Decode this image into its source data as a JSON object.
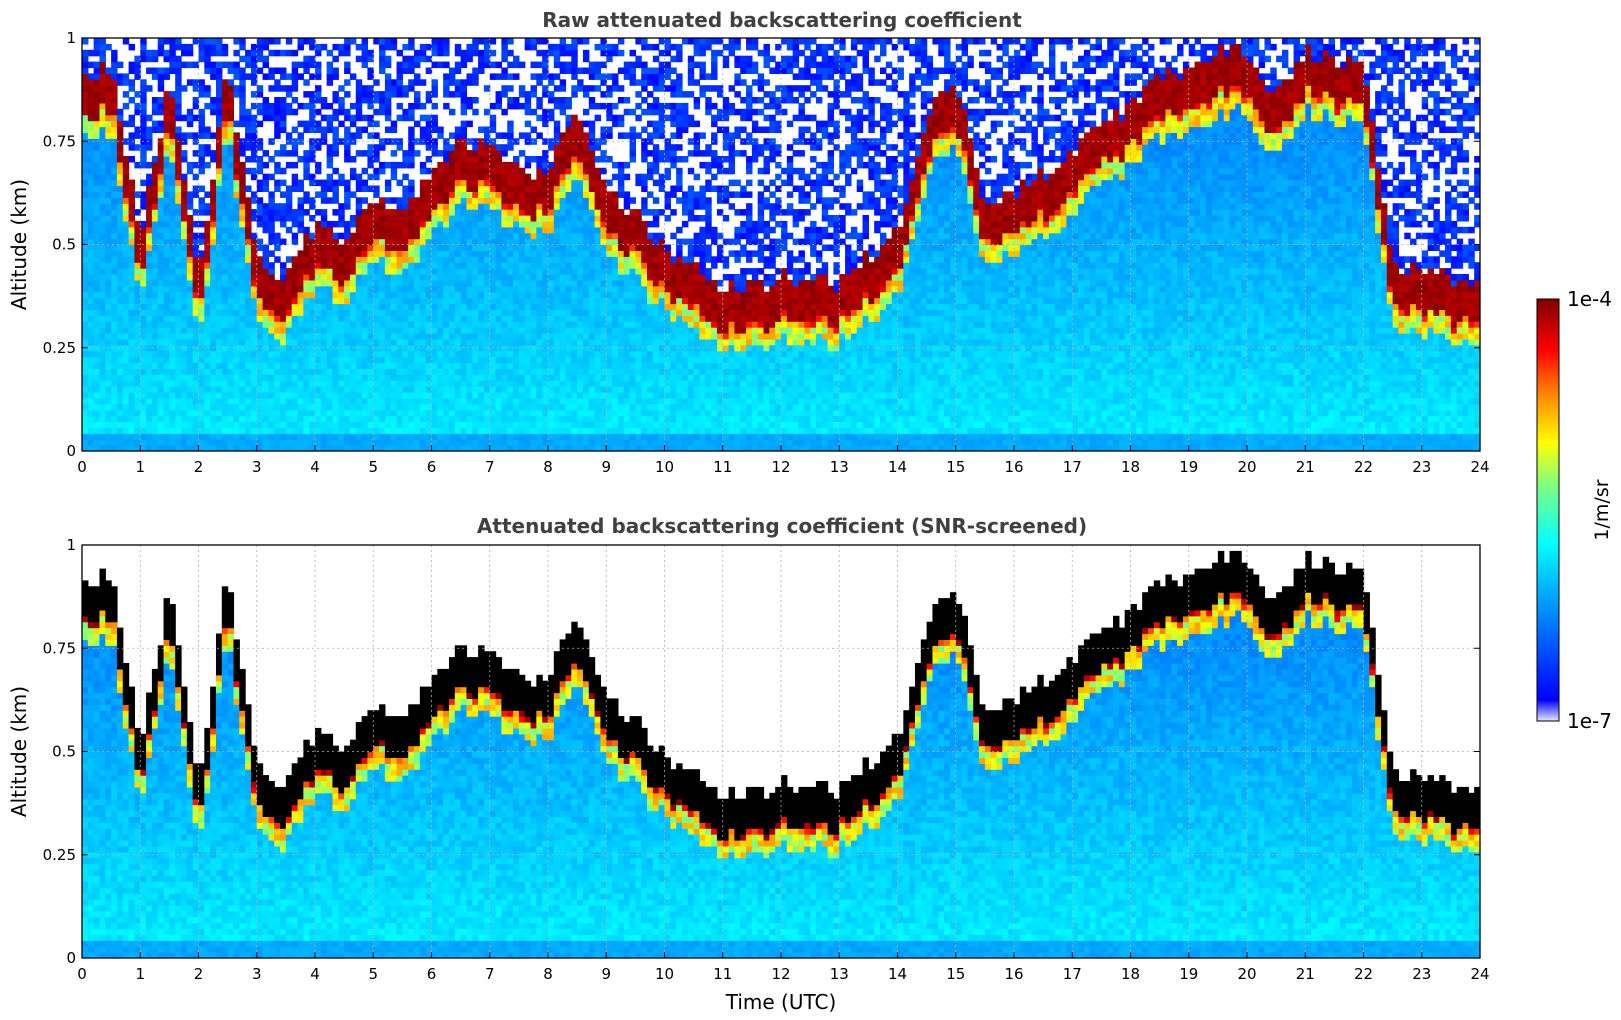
{
  "colors": {
    "colormap": [
      "#ffffff",
      "#0000ff",
      "#00a8ff",
      "#00ffff",
      "#7fff7f",
      "#ffff00",
      "#ff7f00",
      "#ff0000",
      "#7f0000"
    ],
    "saturated_screened": "#000000",
    "title_text": "#404040",
    "grid": "#b0b0b0"
  },
  "chart_data": [
    {
      "type": "heatmap",
      "title": "Raw attenuated backscattering coefficient",
      "xlabel": "",
      "ylabel": "Altitude (km)",
      "xlim": [
        0,
        24
      ],
      "ylim": [
        0,
        1
      ],
      "xticks": [
        "0",
        "1",
        "2",
        "3",
        "4",
        "5",
        "6",
        "7",
        "8",
        "9",
        "10",
        "11",
        "12",
        "13",
        "14",
        "15",
        "16",
        "17",
        "18",
        "19",
        "20",
        "21",
        "22",
        "23",
        "24"
      ],
      "yticks": [
        "0",
        "0.25",
        "0.5",
        "0.75",
        "1"
      ],
      "grid": true,
      "variant": "raw",
      "cloud_base_km": [
        [
          0.0,
          0.8
        ],
        [
          0.5,
          0.82
        ],
        [
          1.0,
          0.4
        ],
        [
          1.5,
          0.78
        ],
        [
          2.0,
          0.3
        ],
        [
          2.5,
          0.82
        ],
        [
          3.0,
          0.34
        ],
        [
          3.5,
          0.31
        ],
        [
          4.0,
          0.44
        ],
        [
          4.5,
          0.4
        ],
        [
          5.0,
          0.5
        ],
        [
          5.5,
          0.48
        ],
        [
          6.0,
          0.56
        ],
        [
          6.5,
          0.64
        ],
        [
          7.0,
          0.62
        ],
        [
          7.5,
          0.58
        ],
        [
          8.0,
          0.56
        ],
        [
          8.5,
          0.72
        ],
        [
          9.0,
          0.52
        ],
        [
          9.5,
          0.46
        ],
        [
          10.0,
          0.38
        ],
        [
          10.5,
          0.34
        ],
        [
          11.0,
          0.28
        ],
        [
          11.5,
          0.29
        ],
        [
          12.0,
          0.31
        ],
        [
          12.5,
          0.31
        ],
        [
          13.0,
          0.3
        ],
        [
          13.5,
          0.36
        ],
        [
          14.0,
          0.42
        ],
        [
          14.5,
          0.7
        ],
        [
          15.0,
          0.8
        ],
        [
          15.5,
          0.48
        ],
        [
          16.0,
          0.52
        ],
        [
          16.5,
          0.56
        ],
        [
          17.0,
          0.62
        ],
        [
          17.5,
          0.68
        ],
        [
          18.0,
          0.72
        ],
        [
          18.5,
          0.8
        ],
        [
          19.0,
          0.82
        ],
        [
          19.5,
          0.85
        ],
        [
          20.0,
          0.86
        ],
        [
          20.5,
          0.75
        ],
        [
          21.0,
          0.86
        ],
        [
          21.5,
          0.84
        ],
        [
          22.0,
          0.82
        ],
        [
          22.5,
          0.33
        ],
        [
          23.0,
          0.32
        ],
        [
          23.5,
          0.31
        ],
        [
          24.0,
          0.31
        ]
      ],
      "cloud_thickness_km": 0.11,
      "colorbar": {
        "min_label": "1e-7",
        "max_label": "1e-4",
        "label": "1/m/sr",
        "scale": "log"
      }
    },
    {
      "type": "heatmap",
      "title": "Attenuated backscattering coefficient (SNR-screened)",
      "xlabel": "Time (UTC)",
      "ylabel": "Altitude (km)",
      "xlim": [
        0,
        24
      ],
      "ylim": [
        0,
        1
      ],
      "xticks": [
        "0",
        "1",
        "2",
        "3",
        "4",
        "5",
        "6",
        "7",
        "8",
        "9",
        "10",
        "11",
        "12",
        "13",
        "14",
        "15",
        "16",
        "17",
        "18",
        "19",
        "20",
        "21",
        "22",
        "23",
        "24"
      ],
      "yticks": [
        "0",
        "0.25",
        "0.5",
        "0.75",
        "1"
      ],
      "grid": true,
      "variant": "screened"
    }
  ],
  "colorbar": {
    "min_label": "1e-7",
    "max_label": "1e-4",
    "label": "1/m/sr"
  }
}
